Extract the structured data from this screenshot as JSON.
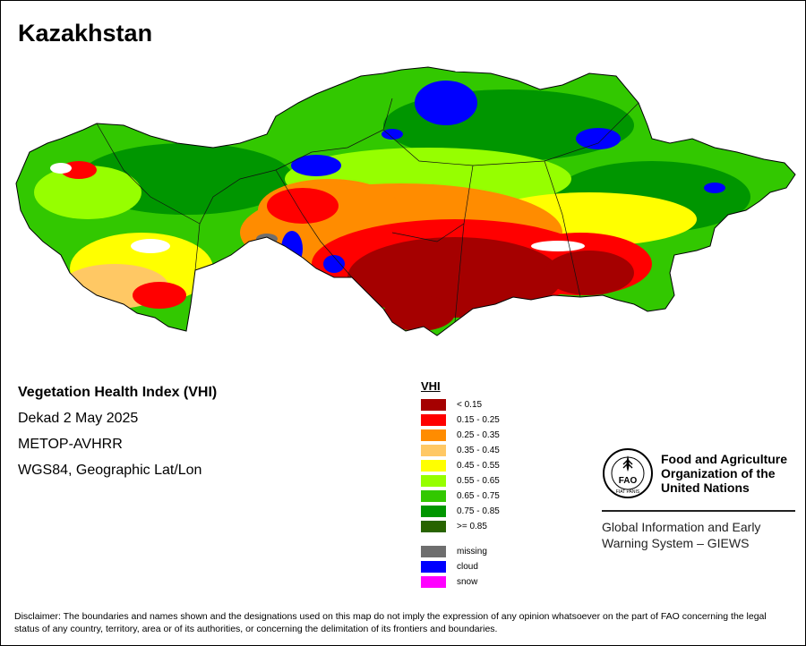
{
  "country": "Kazakhstan",
  "info": {
    "title": "Vegetation Health Index (VHI)",
    "date": "Dekad 2 May 2025",
    "sensor": "METOP-AVHRR",
    "projection": "WGS84, Geographic Lat/Lon"
  },
  "legend": {
    "title": "VHI",
    "classes": [
      {
        "label": "< 0.15",
        "color": "#a50000"
      },
      {
        "label": "0.15 - 0.25",
        "color": "#ff0000"
      },
      {
        "label": "0.25 - 0.35",
        "color": "#ff8c00"
      },
      {
        "label": "0.35 - 0.45",
        "color": "#ffc864"
      },
      {
        "label": "0.45 - 0.55",
        "color": "#ffff00"
      },
      {
        "label": "0.55 - 0.65",
        "color": "#96ff00"
      },
      {
        "label": "0.65 - 0.75",
        "color": "#32c800"
      },
      {
        "label": "0.75 - 0.85",
        "color": "#009600"
      },
      {
        "label": ">= 0.85",
        "color": "#286400"
      }
    ],
    "extra": [
      {
        "label": "missing",
        "color": "#6e6e6e"
      },
      {
        "label": "cloud",
        "color": "#0000ff"
      },
      {
        "label": "snow",
        "color": "#ff00ff"
      }
    ]
  },
  "fao": {
    "org_line1": "Food and Agriculture",
    "org_line2": "Organization of the",
    "org_line3": "United Nations",
    "emblem_text": "FAO",
    "emblem_motto": "FIAT PANIS",
    "giews_line1": "Global Information and Early",
    "giews_line2": "Warning System – GIEWS"
  },
  "disclaimer": "Disclaimer: The boundaries and names shown and the designations used on this map do not imply the expression of any opinion whatsoever on the part of FAO concerning the legal status of any country, territory, area or of its authorities, or concerning the delimitation of its frontiers and boundaries."
}
